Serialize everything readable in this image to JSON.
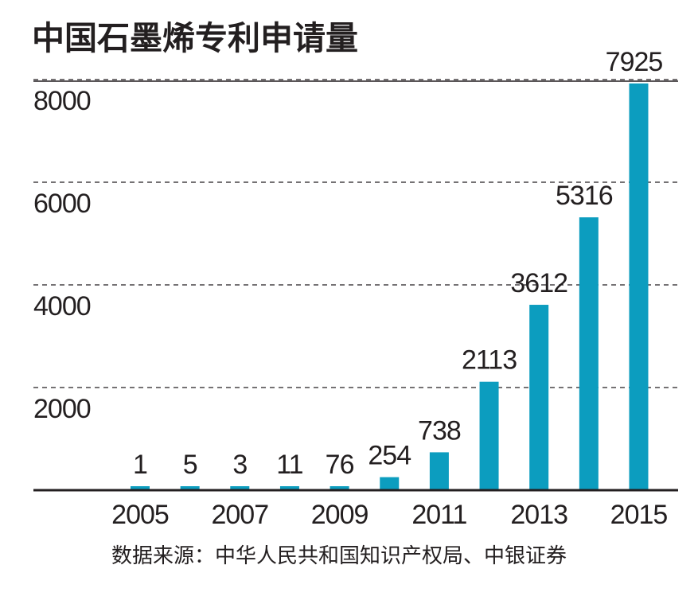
{
  "chart_data": {
    "type": "bar",
    "title": "中国石墨烯专利申请量",
    "source": "数据来源：中华人民共和国知识产权局、中银证券",
    "categories": [
      "2005",
      "2006",
      "2007",
      "2008",
      "2009",
      "2010",
      "2011",
      "2012",
      "2013",
      "2014",
      "2015"
    ],
    "values": [
      1,
      5,
      3,
      11,
      76,
      254,
      738,
      2113,
      3612,
      5316,
      7925
    ],
    "x_tick_labels": [
      "2005",
      "2007",
      "2009",
      "2011",
      "2013",
      "2015"
    ],
    "y_ticks": [
      2000,
      4000,
      6000,
      8000
    ],
    "ylim": [
      0,
      8000
    ],
    "xlabel": "",
    "ylabel": "",
    "grid": "horizontal dashed",
    "bar_color": "#0c9dbf"
  }
}
